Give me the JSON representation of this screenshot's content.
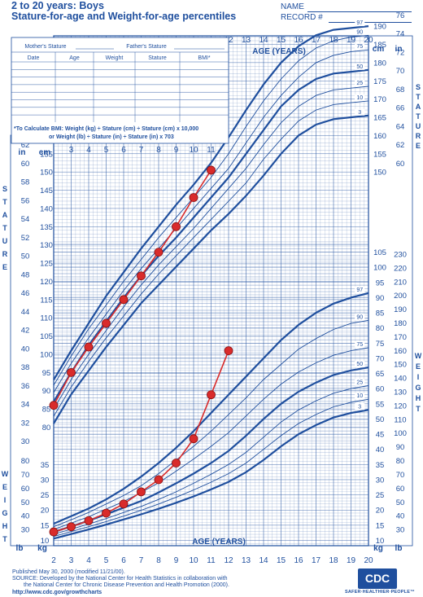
{
  "header": {
    "title_line1": "2 to 20 years: Boys",
    "title_line2": "Stature-for-age and Weight-for-age percentiles",
    "name_label": "NAME",
    "record_label": "RECORD #"
  },
  "record_table": {
    "mother_label": "Mother's Stature",
    "father_label": "Father's Stature",
    "columns": [
      "Date",
      "Age",
      "Weight",
      "Stature",
      "BMI*"
    ],
    "bmi_line1": "*To Calculate BMI: Weight (kg) ÷ Stature (cm) ÷ Stature (cm) x 10,000",
    "bmi_line2": "or Weight (lb) ÷ Stature (in) ÷ Stature (in) x 703"
  },
  "axis_labels": {
    "age": "AGE (YEARS)",
    "stature": "STATURE",
    "weight": "WEIGHT",
    "in": "in",
    "cm": "cm",
    "lb": "lb",
    "kg": "kg"
  },
  "footer": {
    "published": "Published May 30, 2000 (modified 11/21/00).",
    "source1": "SOURCE: Developed by the National Center for Health Statistics in collaboration with",
    "source2": "the National Center for Chronic Disease Prevention and Health Promotion (2000).",
    "url": "http://www.cdc.gov/growthcharts",
    "logo": "CDC",
    "logo_tagline": "SAFER·HEALTHIER·PEOPLE™"
  },
  "colors": {
    "grid": "#1f4f9e",
    "point": "#d92b2b"
  },
  "chart_data": [
    {
      "type": "line",
      "title": "Stature-for-age percentiles",
      "xlabel": "AGE (YEARS)",
      "ylabel": "STATURE",
      "xlim": [
        2,
        20
      ],
      "ylim": [
        75,
        197
      ],
      "x": [
        2,
        3,
        4,
        5,
        6,
        7,
        8,
        9,
        10,
        11,
        12,
        13,
        14,
        15,
        16,
        17,
        18,
        19,
        20
      ],
      "percentile_labels": [
        "97",
        "90",
        "75",
        "50",
        "25",
        "10",
        "3"
      ],
      "series": [
        {
          "name": "97",
          "values": [
            93,
            101,
            108.5,
            116,
            122.5,
            129,
            135,
            141,
            146.5,
            152.5,
            159.5,
            167,
            174,
            180,
            184.5,
            187.5,
            189,
            189.5,
            190
          ]
        },
        {
          "name": "90",
          "values": [
            91.5,
            99.5,
            107,
            113.5,
            120,
            126,
            132,
            137.5,
            143,
            148.5,
            155,
            162.5,
            169.5,
            175.5,
            180.5,
            184,
            186,
            187,
            187.5
          ]
        },
        {
          "name": "75",
          "values": [
            89.5,
            97.5,
            104.5,
            111,
            117.5,
            123.5,
            129,
            134.5,
            140,
            145.5,
            151,
            158,
            165,
            171,
            176,
            180,
            182,
            183,
            183.5
          ]
        },
        {
          "name": "50",
          "values": [
            87,
            95,
            102.5,
            109,
            115.5,
            121.5,
            127,
            132,
            137.5,
            143,
            148.5,
            155,
            161.5,
            168,
            172.5,
            175.5,
            177,
            177.5,
            178
          ]
        },
        {
          "name": "25",
          "values": [
            85,
            93,
            100,
            106.5,
            113,
            119,
            124.5,
            129.5,
            134.5,
            140,
            145.5,
            151,
            157.5,
            163.5,
            168,
            171,
            172.5,
            173,
            173.5
          ]
        },
        {
          "name": "10",
          "values": [
            83,
            91,
            98,
            104.5,
            110.5,
            116.5,
            122,
            127,
            132,
            137,
            142,
            147,
            153.5,
            159,
            164,
            167,
            168.5,
            169,
            169.5
          ]
        },
        {
          "name": "3",
          "values": [
            81,
            89,
            95.5,
            102,
            108,
            114,
            119,
            124,
            129,
            134,
            138.5,
            143.5,
            149,
            155,
            160,
            163,
            164.5,
            165,
            165.5
          ]
        },
        {
          "name": "Patient",
          "points": [
            [
              2,
              86
            ],
            [
              3,
              95
            ],
            [
              4,
              102
            ],
            [
              5,
              108.5
            ],
            [
              6,
              115
            ],
            [
              7,
              121.5
            ],
            [
              8,
              128
            ],
            [
              9,
              135
            ],
            [
              10,
              143
            ],
            [
              11,
              150.5
            ]
          ]
        }
      ],
      "axes": {
        "cm_left": [
          80,
          85,
          90,
          95,
          100,
          105,
          110,
          115,
          120,
          125,
          130,
          135,
          140,
          145,
          150,
          155,
          160
        ],
        "in_left": [
          30,
          32,
          34,
          36,
          38,
          40,
          42,
          44,
          46,
          48,
          50,
          52,
          54,
          56,
          58,
          60,
          62
        ],
        "cm_right": [
          150,
          155,
          160,
          165,
          170,
          175,
          180,
          185,
          190
        ],
        "in_right": [
          60,
          62,
          64,
          66,
          68,
          70,
          72,
          74,
          76
        ],
        "age_top": [
          12,
          13,
          14,
          15,
          16,
          17,
          18,
          19,
          20
        ],
        "age_inner": [
          3,
          4,
          5,
          6,
          7,
          8,
          9,
          10,
          11
        ]
      }
    },
    {
      "type": "line",
      "title": "Weight-for-age percentiles",
      "xlabel": "AGE (YEARS)",
      "ylabel": "WEIGHT",
      "xlim": [
        2,
        20
      ],
      "ylim": [
        8,
        108
      ],
      "x": [
        2,
        3,
        4,
        5,
        6,
        7,
        8,
        9,
        10,
        11,
        12,
        13,
        14,
        15,
        16,
        17,
        18,
        19,
        20
      ],
      "percentile_labels": [
        "97",
        "90",
        "75",
        "50",
        "25",
        "10",
        "3"
      ],
      "series": [
        {
          "name": "97",
          "values": [
            15.5,
            18,
            20.5,
            23.5,
            27,
            31,
            35.5,
            40.5,
            46,
            52,
            58,
            64,
            70,
            76,
            81,
            85,
            88,
            90,
            91.5
          ]
        },
        {
          "name": "90",
          "values": [
            14.5,
            16.8,
            19.2,
            22,
            24.8,
            28,
            32,
            36.5,
            41,
            46,
            51.5,
            57,
            63,
            68,
            73,
            76.5,
            79.5,
            81.5,
            82.5
          ]
        },
        {
          "name": "75",
          "values": [
            13.6,
            15.7,
            17.8,
            20.3,
            22.8,
            25.8,
            29,
            32.8,
            36.8,
            41,
            45.5,
            51,
            56.5,
            61.5,
            65.5,
            68.5,
            71,
            72.5,
            73.5
          ]
        },
        {
          "name": "50",
          "values": [
            12.8,
            14.6,
            16.5,
            18.6,
            20.8,
            23,
            25.8,
            28.8,
            32,
            35.5,
            39.5,
            44.5,
            50,
            55,
            59,
            62,
            64.5,
            66,
            67
          ]
        },
        {
          "name": "25",
          "values": [
            12,
            13.7,
            15.4,
            17.2,
            19.2,
            21.2,
            23.5,
            26,
            28.8,
            31.8,
            35,
            39,
            44,
            49,
            53,
            56,
            58.5,
            60,
            61
          ]
        },
        {
          "name": "10",
          "values": [
            11.3,
            12.9,
            14.5,
            16.2,
            18,
            19.9,
            22,
            24.2,
            26.6,
            29.2,
            32,
            35.5,
            40,
            44.5,
            48.5,
            51.5,
            54,
            55.5,
            56.5
          ]
        },
        {
          "name": "3",
          "values": [
            10.6,
            12.1,
            13.6,
            15.2,
            16.9,
            18.6,
            20.4,
            22.4,
            24.5,
            26.8,
            29.3,
            32.5,
            36.5,
            41,
            45,
            48,
            50.5,
            52,
            53
          ]
        },
        {
          "name": "Patient",
          "points": [
            [
              2,
              12.8
            ],
            [
              3,
              14.5
            ],
            [
              4,
              16.5
            ],
            [
              5,
              19
            ],
            [
              6,
              22
            ],
            [
              7,
              26
            ],
            [
              8,
              30
            ],
            [
              9,
              35.5
            ],
            [
              10,
              43.5
            ],
            [
              11,
              58
            ],
            [
              12,
              72.5
            ]
          ]
        }
      ],
      "axes": {
        "kg_left": [
          10,
          15,
          20,
          25,
          30,
          35
        ],
        "lb_left": [
          30,
          40,
          50,
          60,
          70,
          80
        ],
        "kg_right": [
          10,
          15,
          20,
          25,
          30,
          35,
          40,
          45,
          50,
          55,
          60,
          65,
          70,
          75,
          80,
          85,
          90,
          95,
          100,
          105
        ],
        "lb_right": [
          30,
          40,
          50,
          60,
          70,
          80,
          90,
          100,
          110,
          120,
          130,
          140,
          150,
          160,
          170,
          180,
          190,
          200,
          210,
          220,
          230
        ],
        "age_bottom": [
          2,
          3,
          4,
          5,
          6,
          7,
          8,
          9,
          10,
          11,
          12,
          13,
          14,
          15,
          16,
          17,
          18,
          19,
          20
        ]
      }
    }
  ]
}
